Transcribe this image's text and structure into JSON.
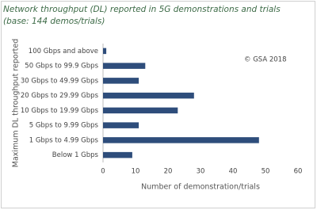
{
  "chart_data": {
    "type": "hbar",
    "title": "Network throughput (DL) reported in 5G demonstrations and trials",
    "subtitle": "(base: 144 demos/trials)",
    "annotation": "© GSA 2018",
    "x_label": "Number of demonstration/trials",
    "y_label": "Maximum DL throughput reported",
    "categories": [
      "100 Gbps and above",
      "50 Gbps to 99.9 Gbps",
      "30 Gbps to 49.99 Gbps",
      "20 Gbps to 29.99 Gbps",
      "10 Gbps to 19.99 Gbps",
      "5 Gbps to 9.99 Gbps",
      "1 Gbps to 4.99 Gbps",
      "Below 1 Gbps"
    ],
    "values": [
      1,
      13,
      11,
      28,
      23,
      11,
      48,
      9
    ],
    "color": "#2e4d7b",
    "xlim": [
      0,
      60
    ],
    "xticks": [
      0,
      10,
      20,
      30,
      40,
      50,
      60
    ],
    "grid": false
  }
}
